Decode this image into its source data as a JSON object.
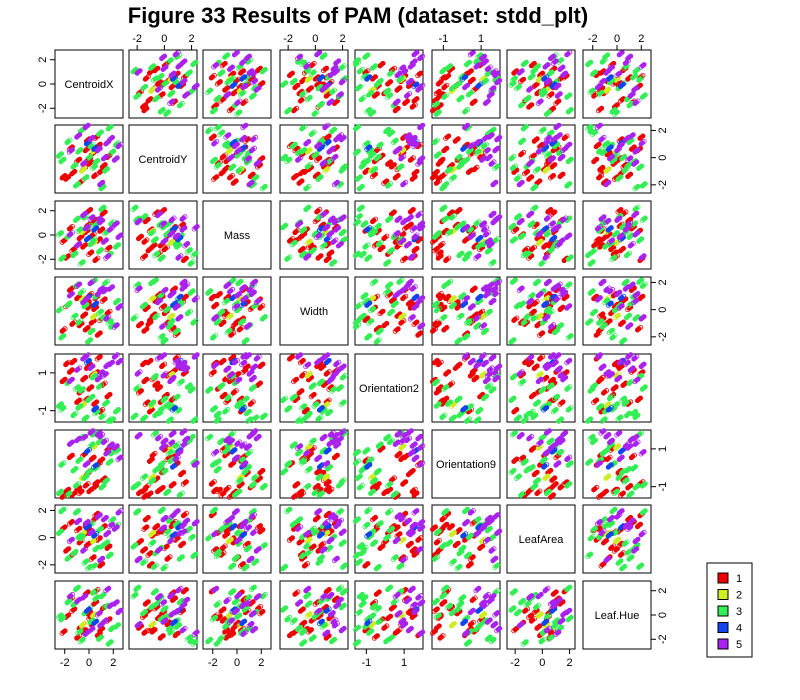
{
  "chart_data": {
    "type": "scatter",
    "subtype": "pairs-scatterplot-matrix",
    "title": "Figure 33 Results of PAM (dataset: stdd_plt)",
    "variables": [
      "CentroidX",
      "CentroidY",
      "Mass",
      "Width",
      "Orientation2",
      "Orientation9",
      "LeafArea",
      "Leaf.Hue"
    ],
    "axis_ticks": {
      "CentroidX": {
        "range": [
          -2.8,
          2.8
        ],
        "ticks": [
          -2,
          0,
          2
        ],
        "labels": [
          "-2",
          "0",
          "2"
        ]
      },
      "CentroidY": {
        "range": [
          -2.6,
          2.4
        ],
        "ticks": [
          -2,
          0,
          2
        ],
        "labels": [
          "-2",
          "0",
          "2"
        ]
      },
      "Mass": {
        "range": [
          -2.8,
          2.8
        ],
        "ticks": [
          -2,
          0,
          2
        ],
        "labels": [
          "-2",
          "0",
          "2"
        ]
      },
      "Width": {
        "range": [
          -2.6,
          2.4
        ],
        "ticks": [
          -2,
          0,
          2
        ],
        "labels": [
          "-2",
          "0",
          "2"
        ]
      },
      "Orientation2": {
        "range": [
          -1.6,
          2.0
        ],
        "ticks": [
          -1,
          1
        ],
        "labels": [
          "-1",
          "1"
        ]
      },
      "Orientation9": {
        "range": [
          -1.6,
          2.0
        ],
        "ticks": [
          -1,
          1
        ],
        "labels": [
          "-1",
          "1"
        ]
      },
      "LeafArea": {
        "range": [
          -2.6,
          2.4
        ],
        "ticks": [
          -2,
          0,
          2
        ],
        "labels": [
          "-2",
          "0",
          "2"
        ]
      },
      "Leaf.Hue": {
        "range": [
          -2.8,
          2.8
        ],
        "ticks": [
          -2,
          0,
          2
        ],
        "labels": [
          "-2",
          "0",
          "2"
        ]
      }
    },
    "clusters": [
      {
        "name": "1",
        "color": "#ee0000"
      },
      {
        "name": "2",
        "color": "#ccee22"
      },
      {
        "name": "3",
        "color": "#33ee55"
      },
      {
        "name": "4",
        "color": "#1144ee"
      },
      {
        "name": "5",
        "color": "#aa22ee"
      }
    ],
    "legend_position": "bottom-right",
    "grid": false,
    "points": [
      {
        "c": 1,
        "v": [
          -1.8,
          -1.5,
          -1.8,
          0.3,
          1.5,
          -1.2,
          -0.9,
          -0.1
        ]
      },
      {
        "c": 1,
        "v": [
          -1.3,
          -1.1,
          -1.2,
          -1.0,
          1.6,
          -1.4,
          -1.2,
          0.4
        ]
      },
      {
        "c": 1,
        "v": [
          -0.9,
          -0.2,
          -0.8,
          0.9,
          -0.5,
          -1.1,
          0.6,
          -1.8
        ]
      },
      {
        "c": 1,
        "v": [
          -0.4,
          -0.8,
          -0.9,
          -0.4,
          0.7,
          0.7,
          0.2,
          -1.3
        ]
      },
      {
        "c": 1,
        "v": [
          -0.2,
          0.6,
          0.3,
          -1.4,
          -0.4,
          -0.9,
          0.9,
          1.8
        ]
      },
      {
        "c": 1,
        "v": [
          -0.1,
          1.3,
          0.8,
          0.5,
          1.3,
          -0.3,
          -0.5,
          0.3
        ]
      },
      {
        "c": 1,
        "v": [
          0.1,
          -0.4,
          -1.5,
          1.1,
          0.2,
          -1.2,
          0.4,
          -0.2
        ]
      },
      {
        "c": 1,
        "v": [
          0.3,
          0.3,
          0.0,
          -0.9,
          0.9,
          0.5,
          -1.5,
          -0.7
        ]
      },
      {
        "c": 1,
        "v": [
          0.5,
          -1.3,
          1.2,
          0.1,
          -0.6,
          -1.0,
          1.4,
          1.0
        ]
      },
      {
        "c": 1,
        "v": [
          0.8,
          0.9,
          -0.4,
          -1.8,
          1.8,
          0.2,
          -0.1,
          -1.6
        ]
      },
      {
        "c": 1,
        "v": [
          1.2,
          -0.6,
          1.8,
          0.7,
          0.4,
          -0.6,
          0.8,
          0.6
        ]
      },
      {
        "c": 1,
        "v": [
          1.6,
          0.1,
          -1.1,
          -0.2,
          -0.2,
          1.0,
          -0.7,
          -0.4
        ]
      },
      {
        "c": 1,
        "v": [
          -1.5,
          0.7,
          0.6,
          1.5,
          1.1,
          0.6,
          1.1,
          1.3
        ]
      },
      {
        "c": 1,
        "v": [
          -0.7,
          -1.8,
          -0.2,
          -1.1,
          0.0,
          -1.3,
          -0.3,
          -1.0
        ]
      },
      {
        "c": 1,
        "v": [
          0.0,
          -0.1,
          2.0,
          0.2,
          1.4,
          -0.2,
          0.5,
          0.2
        ]
      },
      {
        "c": 1,
        "v": [
          1.0,
          -1.0,
          0.4,
          -0.7,
          -1.0,
          0.4,
          -2.0,
          -1.2
        ]
      },
      {
        "c": 1,
        "v": [
          -2.1,
          -1.4,
          -0.5,
          -1.5,
          0.6,
          -1.5,
          0.7,
          -1.4
        ]
      },
      {
        "c": 1,
        "v": [
          0.6,
          1.5,
          -2.0,
          0.9,
          1.0,
          -0.8,
          1.7,
          2.0
        ]
      },
      {
        "c": 2,
        "v": [
          0.4,
          0.5,
          -0.6,
          -0.5,
          0.9,
          1.1,
          -0.2,
          0.0
        ]
      },
      {
        "c": 2,
        "v": [
          -0.5,
          -0.9,
          0.3,
          0.8,
          -0.7,
          -0.5,
          0.3,
          -0.8
        ]
      },
      {
        "c": 3,
        "v": [
          -1.2,
          -0.6,
          -1.6,
          -0.5,
          -1.2,
          -0.1,
          -1.1,
          0.9
        ]
      },
      {
        "c": 3,
        "v": [
          -0.8,
          0.5,
          0.4,
          -0.9,
          -0.8,
          0.4,
          0.1,
          -1.4
        ]
      },
      {
        "c": 3,
        "v": [
          -0.3,
          -1.5,
          1.5,
          0.3,
          -1.4,
          -0.5,
          -1.8,
          0.2
        ]
      },
      {
        "c": 3,
        "v": [
          0.2,
          0.9,
          -0.7,
          -1.6,
          -0.3,
          1.2,
          1.0,
          -0.5
        ]
      },
      {
        "c": 3,
        "v": [
          0.6,
          -0.3,
          0.9,
          1.0,
          -1.1,
          0.0,
          -0.8,
          1.4
        ]
      },
      {
        "c": 3,
        "v": [
          0.9,
          1.8,
          -1.3,
          -0.2,
          0.3,
          1.4,
          0.6,
          -1.9
        ]
      },
      {
        "c": 3,
        "v": [
          1.4,
          -0.9,
          0.2,
          2.0,
          -0.6,
          -0.7,
          -0.4,
          0.7
        ]
      },
      {
        "c": 3,
        "v": [
          1.9,
          0.4,
          1.0,
          -1.2,
          -1.5,
          0.8,
          1.3,
          -1.1
        ]
      },
      {
        "c": 3,
        "v": [
          -1.7,
          1.2,
          -0.1,
          0.4,
          0.5,
          -1.4,
          -1.5,
          1.1
        ]
      },
      {
        "c": 3,
        "v": [
          -2.2,
          -0.2,
          -1.9,
          -2.0,
          -0.9,
          0.2,
          2.0,
          -0.3
        ]
      },
      {
        "c": 3,
        "v": [
          1.1,
          -2.2,
          2.2,
          -0.6,
          -1.3,
          -1.0,
          -0.6,
          1.6
        ]
      },
      {
        "c": 3,
        "v": [
          -0.6,
          2.0,
          -2.3,
          1.3,
          0.1,
          1.6,
          0.0,
          -2.1
        ]
      },
      {
        "c": 3,
        "v": [
          0.0,
          0.0,
          0.7,
          -2.3,
          -0.4,
          -0.2,
          -2.2,
          0.5
        ]
      },
      {
        "c": 3,
        "v": [
          2.3,
          1.0,
          -0.9,
          0.6,
          -1.0,
          0.9,
          0.9,
          -0.9
        ]
      },
      {
        "c": 3,
        "v": [
          -1.0,
          -2.0,
          1.3,
          1.8,
          0.2,
          -0.9,
          1.9,
          2.2
        ]
      },
      {
        "c": 3,
        "v": [
          1.7,
          2.2,
          -1.6,
          -0.9,
          -1.5,
          0.3,
          -1.3,
          -2.3
        ]
      },
      {
        "c": 3,
        "v": [
          -2.4,
          0.2,
          0.1,
          0.0,
          -0.7,
          -1.3,
          0.4,
          -0.1
        ]
      },
      {
        "c": 3,
        "v": [
          0.4,
          -0.7,
          -0.4,
          2.1,
          0.8,
          1.8,
          -2.1,
          1.9
        ]
      },
      {
        "c": 4,
        "v": [
          0.5,
          0.7,
          0.5,
          0.4,
          -0.9,
          0.1,
          0.2,
          -0.6
        ]
      },
      {
        "c": 4,
        "v": [
          -0.1,
          1.1,
          -0.3,
          0.9,
          1.6,
          0.9,
          0.8,
          0.4
        ]
      },
      {
        "c": 5,
        "v": [
          -0.9,
          1.6,
          -0.8,
          1.8,
          1.2,
          1.5,
          1.2,
          1.2
        ]
      },
      {
        "c": 5,
        "v": [
          0.8,
          0.6,
          1.3,
          1.2,
          0.7,
          1.8,
          1.6,
          0.1
        ]
      },
      {
        "c": 5,
        "v": [
          1.8,
          1.4,
          0.5,
          1.6,
          1.5,
          1.2,
          0.9,
          0.8
        ]
      },
      {
        "c": 5,
        "v": [
          -0.4,
          -0.4,
          1.7,
          0.6,
          1.8,
          1.6,
          -0.9,
          1.5
        ]
      },
      {
        "c": 5,
        "v": [
          1.3,
          0.0,
          -0.5,
          1.4,
          0.9,
          1.4,
          1.4,
          -0.5
        ]
      },
      {
        "c": 5,
        "v": [
          2.2,
          -0.1,
          0.9,
          -1.2,
          1.9,
          1.1,
          0.7,
          1.0
        ]
      },
      {
        "c": 5,
        "v": [
          0.2,
          1.4,
          1.4,
          2.0,
          1.3,
          1.9,
          0.4,
          -1.2
        ]
      },
      {
        "c": 5,
        "v": [
          -1.5,
          0.5,
          0.1,
          1.1,
          0.6,
          1.3,
          -0.2,
          1.6
        ]
      },
      {
        "c": 5,
        "v": [
          2.5,
          0.9,
          -0.1,
          0.2,
          1.6,
          0.5,
          1.9,
          0.3
        ]
      },
      {
        "c": 5,
        "v": [
          1.0,
          -1.9,
          1.1,
          1.5,
          1.0,
          1.7,
          -1.6,
          -0.8
        ]
      },
      {
        "c": 5,
        "v": [
          -0.2,
          2.3,
          0.6,
          0.8,
          1.9,
          0.2,
          1.1,
          -1.5
        ]
      },
      {
        "c": 5,
        "v": [
          1.5,
          1.1,
          -1.8,
          -0.6,
          1.4,
          0.8,
          0.3,
          2.1
        ]
      }
    ]
  }
}
